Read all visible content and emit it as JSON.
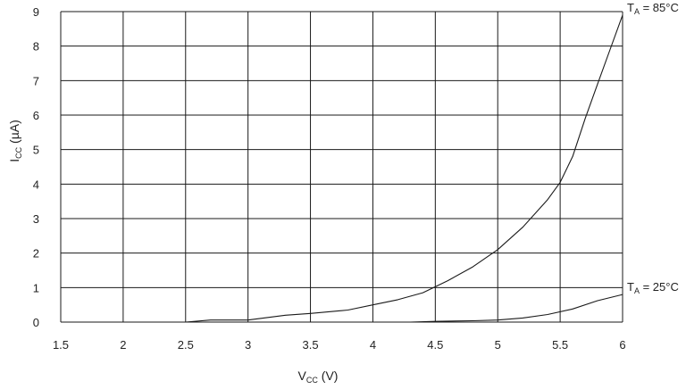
{
  "chart_data": {
    "type": "line",
    "xlabel": {
      "main": "V",
      "sub": "CC",
      "rest": " (V)"
    },
    "ylabel": {
      "main": "I",
      "sub": "CC",
      "rest": " (µA)"
    },
    "xlim": [
      1.5,
      6
    ],
    "ylim": [
      0,
      9
    ],
    "xticks": [
      "1.5",
      "2",
      "2.5",
      "3",
      "3.5",
      "4",
      "4.5",
      "5",
      "5.5",
      "6"
    ],
    "yticks": [
      "0",
      "1",
      "2",
      "3",
      "4",
      "5",
      "6",
      "7",
      "8",
      "9"
    ],
    "grid": true,
    "series": [
      {
        "label": {
          "main": "T",
          "sub": "A",
          "rest": " = 85°C"
        },
        "x": [
          1.8,
          2.0,
          2.5,
          2.7,
          3.0,
          3.3,
          3.5,
          3.8,
          4.0,
          4.2,
          4.4,
          4.6,
          4.8,
          5.0,
          5.2,
          5.4,
          5.5,
          5.6,
          5.7,
          5.8,
          5.9,
          6.0
        ],
        "y": [
          0.0,
          0.0,
          0.0,
          0.06,
          0.06,
          0.2,
          0.25,
          0.35,
          0.5,
          0.65,
          0.85,
          1.2,
          1.6,
          2.1,
          2.75,
          3.55,
          4.05,
          4.8,
          5.9,
          6.9,
          7.9,
          8.9
        ]
      },
      {
        "label": {
          "main": "T",
          "sub": "A",
          "rest": " = 25°C"
        },
        "x": [
          1.8,
          2.5,
          3.0,
          3.5,
          4.0,
          4.3,
          4.5,
          4.8,
          5.0,
          5.2,
          5.4,
          5.6,
          5.8,
          6.0
        ],
        "y": [
          0.0,
          0.0,
          0.0,
          0.0,
          0.0,
          0.0,
          0.02,
          0.04,
          0.06,
          0.12,
          0.22,
          0.38,
          0.62,
          0.8
        ]
      }
    ]
  }
}
